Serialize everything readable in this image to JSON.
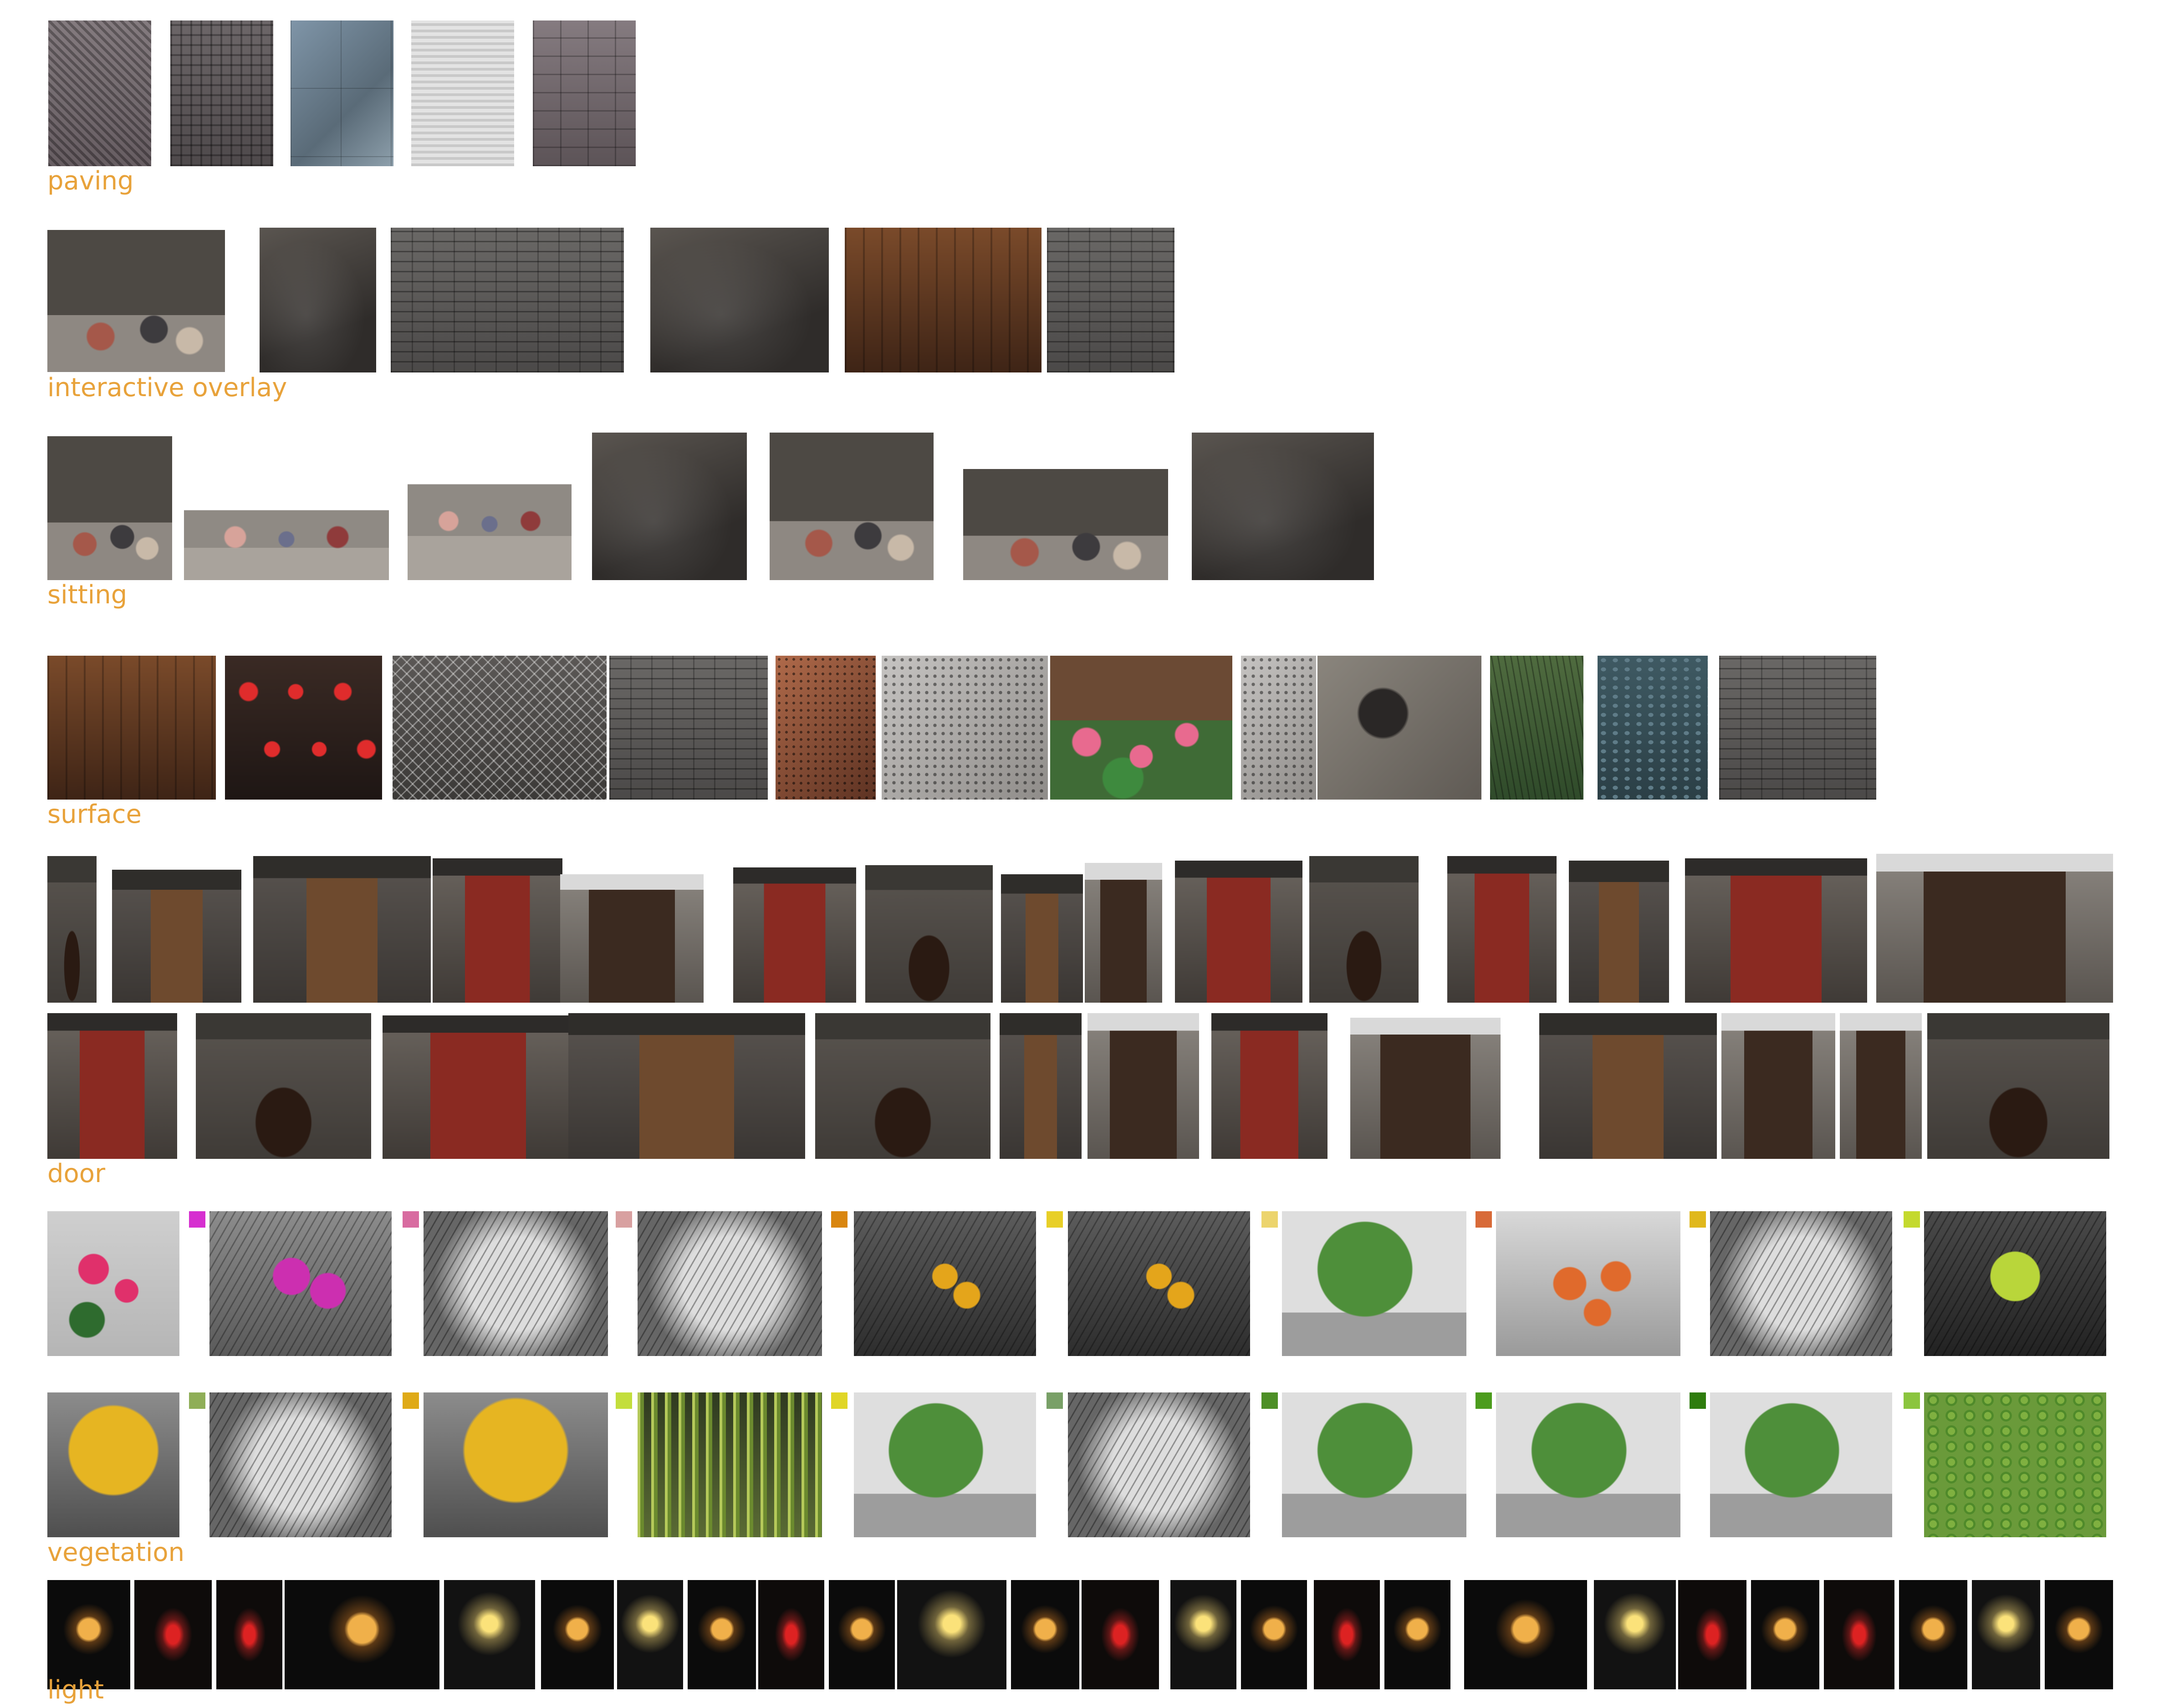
{
  "sections": {
    "paving": "paving",
    "interactive_overlay": "interactive overlay",
    "sitting": "sitting",
    "surface": "surface",
    "door": "door",
    "vegetation": "vegetation",
    "light": "light"
  },
  "colors": {
    "label": "#e8a23a",
    "swatches": [
      "#d62fd0",
      "#d86ba0",
      "#d8a0a0",
      "#d9860f",
      "#e8cf27",
      "#ecd46d",
      "#d86a38",
      "#e0b81c",
      "#c4d92e",
      "#8fae57",
      "#dfaa17",
      "#c3de3c",
      "#e0d626",
      "#79a067",
      "#4d8f26",
      "#4c9c1d",
      "#2e7c0d",
      "#8bc53e"
    ]
  }
}
